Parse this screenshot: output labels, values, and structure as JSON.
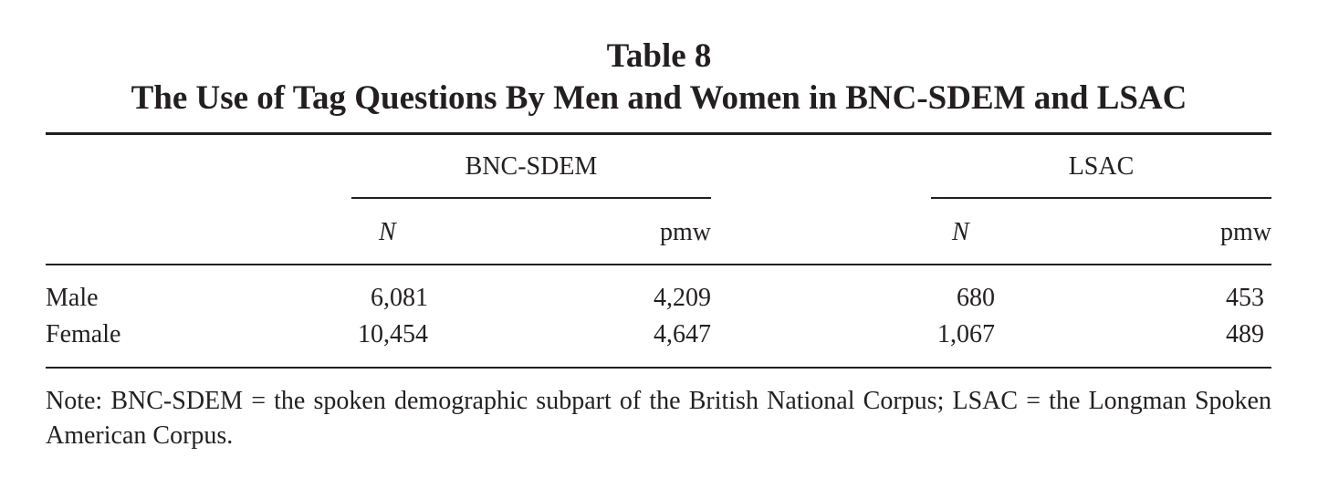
{
  "table": {
    "number": "Table 8",
    "title": "The Use of Tag Questions By Men and Women in BNC-SDEM and LSAC",
    "groups": [
      "BNC-SDEM",
      "LSAC"
    ],
    "subheaders": [
      "N",
      "pmw",
      "N",
      "pmw"
    ],
    "rows": [
      {
        "label": "Male",
        "values": [
          "6,081",
          "4,209",
          "680",
          "453"
        ]
      },
      {
        "label": "Female",
        "values": [
          "10,454",
          "4,647",
          "1,067",
          "489"
        ]
      }
    ],
    "note": "Note: BNC-SDEM = the spoken demographic subpart of the British National Corpus; LSAC = the Longman Spoken American Corpus."
  }
}
